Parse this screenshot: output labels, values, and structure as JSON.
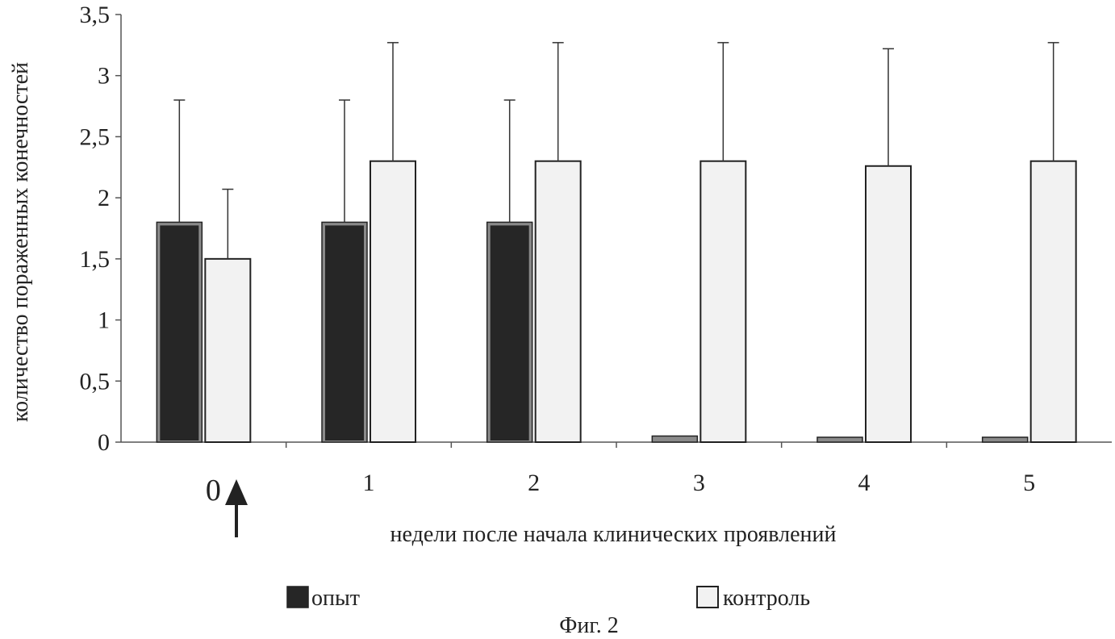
{
  "chart_data": {
    "type": "bar",
    "categories": [
      "0",
      "1",
      "2",
      "3",
      "4",
      "5"
    ],
    "series": [
      {
        "name": "опыт",
        "values": [
          1.8,
          1.8,
          1.8,
          0.05,
          0.04,
          0.04
        ],
        "error_upper": [
          2.8,
          2.8,
          2.8,
          null,
          null,
          null
        ],
        "color": "#262626"
      },
      {
        "name": "контроль",
        "values": [
          1.5,
          2.3,
          2.3,
          2.3,
          2.26,
          2.3
        ],
        "error_upper": [
          2.07,
          3.27,
          3.27,
          3.27,
          3.22,
          3.27
        ],
        "color": "#f2f2f2"
      }
    ],
    "xlabel": "недели после начала клинических проявлений",
    "ylabel": "количество пораженных конечностей",
    "ylim": [
      0,
      3.5
    ],
    "yticks": [
      "0",
      "0,5",
      "1",
      "1,5",
      "2",
      "2,5",
      "3",
      "3,5"
    ],
    "grid": false,
    "legend_position": "bottom",
    "annotation": "arrow pointing up at week 0",
    "caption": "Фиг. 2"
  }
}
